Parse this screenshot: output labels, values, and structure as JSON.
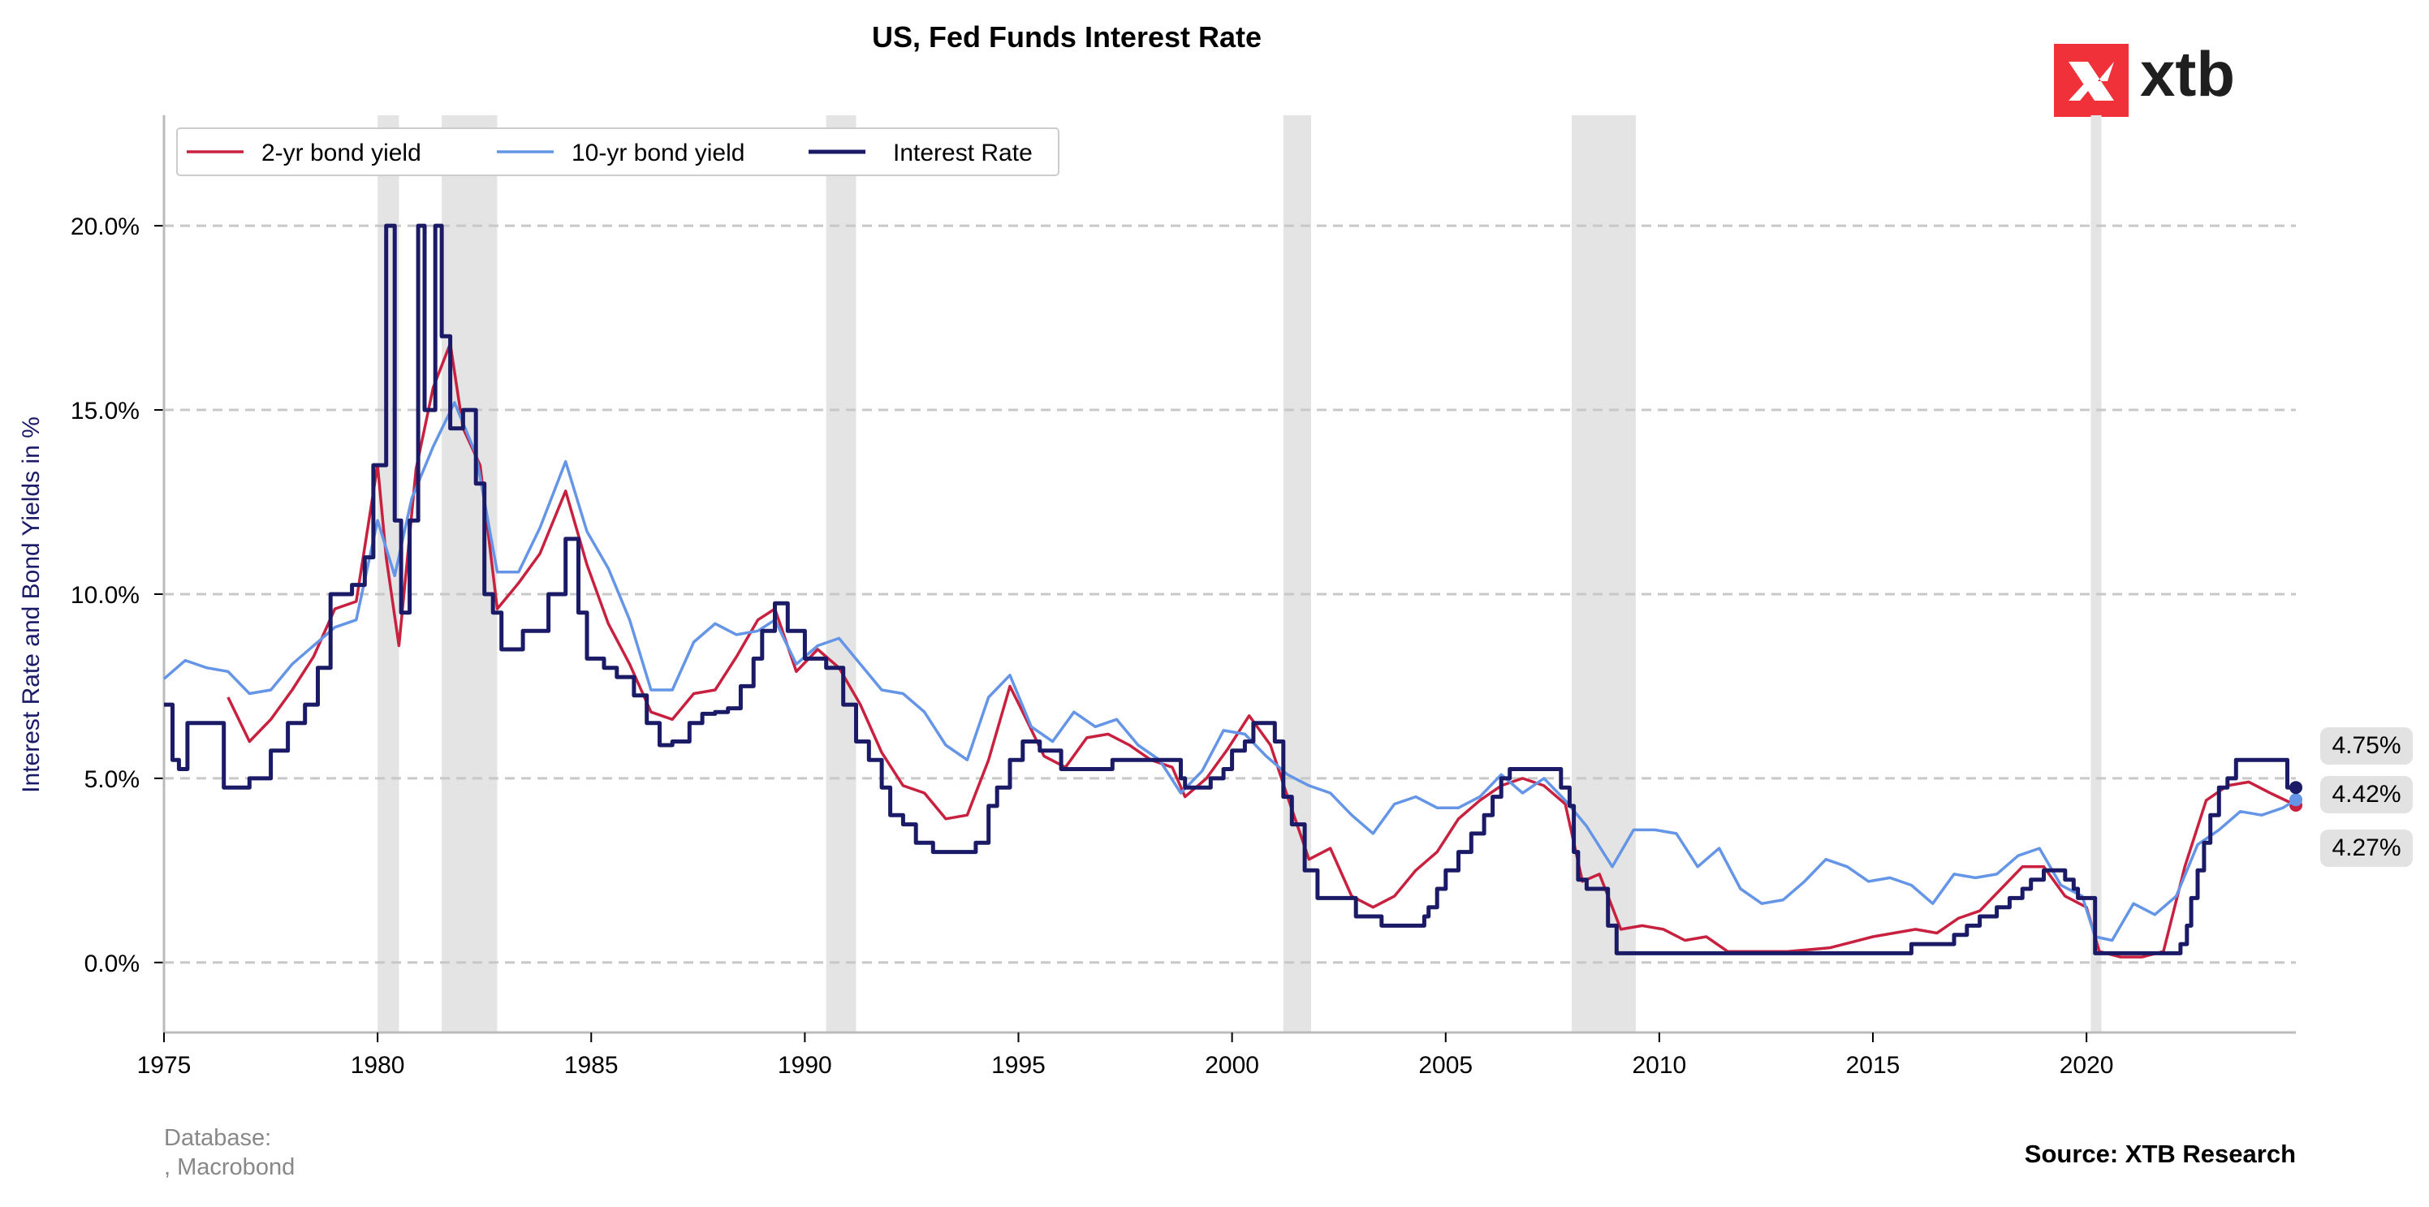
{
  "chart_data": {
    "type": "line",
    "title": "US, Fed Funds Interest Rate",
    "xlabel": "",
    "ylabel": "Interest Rate and Bond Yields in %",
    "xlim": [
      1975,
      2024.9
    ],
    "ylim": [
      -1.9,
      23
    ],
    "x_ticks": [
      1975,
      1980,
      1985,
      1990,
      1995,
      2000,
      2005,
      2010,
      2015,
      2020
    ],
    "x_tick_labels": [
      "1975",
      "1980",
      "1985",
      "1990",
      "1995",
      "2000",
      "2005",
      "2010",
      "2015",
      "2020"
    ],
    "y_ticks": [
      0,
      5,
      10,
      15,
      20
    ],
    "y_tick_labels": [
      "0.0%",
      "5.0%",
      "10.0%",
      "15.0%",
      "20.0%"
    ],
    "grid": "horizontal dashed",
    "legend_position": "top-left",
    "recession_shading": [
      [
        1980.0,
        1980.5
      ],
      [
        1981.5,
        1982.8
      ],
      [
        1990.5,
        1991.2
      ],
      [
        2001.2,
        2001.85
      ],
      [
        2007.95,
        2009.45
      ],
      [
        2020.1,
        2020.35
      ]
    ],
    "series": [
      {
        "name": "2-yr bond yield",
        "color": "#c8203f",
        "x": [
          1976.5,
          1977.0,
          1977.5,
          1978.0,
          1978.5,
          1979.0,
          1979.5,
          1980.0,
          1980.2,
          1980.5,
          1980.9,
          1981.3,
          1981.7,
          1982.0,
          1982.4,
          1982.8,
          1983.3,
          1983.8,
          1984.4,
          1984.9,
          1985.4,
          1985.9,
          1986.4,
          1986.9,
          1987.4,
          1987.9,
          1988.4,
          1988.9,
          1989.3,
          1989.8,
          1990.3,
          1990.8,
          1991.3,
          1991.8,
          1992.3,
          1992.8,
          1993.3,
          1993.8,
          1994.3,
          1994.8,
          1995.1,
          1995.6,
          1996.1,
          1996.6,
          1997.1,
          1997.6,
          1998.1,
          1998.6,
          1998.9,
          1999.4,
          1999.9,
          2000.4,
          2000.9,
          2001.3,
          2001.8,
          2002.3,
          2002.8,
          2003.3,
          2003.8,
          2004.3,
          2004.8,
          2005.3,
          2005.8,
          2006.3,
          2006.8,
          2007.3,
          2007.8,
          2008.2,
          2008.6,
          2009.1,
          2009.6,
          2010.1,
          2010.6,
          2011.1,
          2011.6,
          2012.1,
          2013.0,
          2014.0,
          2015.0,
          2016.0,
          2016.5,
          2017.0,
          2017.5,
          2018.0,
          2018.5,
          2019.0,
          2019.5,
          2020.0,
          2020.3,
          2020.8,
          2021.3,
          2021.8,
          2022.3,
          2022.8,
          2023.3,
          2023.8,
          2024.3,
          2024.9
        ],
        "y": [
          7.2,
          6.0,
          6.6,
          7.4,
          8.3,
          9.6,
          9.8,
          13.5,
          11.0,
          8.6,
          13.4,
          15.6,
          16.8,
          14.5,
          13.5,
          9.6,
          10.3,
          11.1,
          12.8,
          10.8,
          9.2,
          8.1,
          6.8,
          6.6,
          7.3,
          7.4,
          8.3,
          9.3,
          9.6,
          7.9,
          8.5,
          8.0,
          7.0,
          5.7,
          4.8,
          4.6,
          3.9,
          4.0,
          5.5,
          7.5,
          6.8,
          5.6,
          5.3,
          6.1,
          6.2,
          5.9,
          5.5,
          5.3,
          4.5,
          5.0,
          5.8,
          6.7,
          5.9,
          4.5,
          2.8,
          3.1,
          1.8,
          1.5,
          1.8,
          2.5,
          3.0,
          3.9,
          4.4,
          4.8,
          5.0,
          4.8,
          4.3,
          2.2,
          2.4,
          0.9,
          1.0,
          0.9,
          0.6,
          0.7,
          0.3,
          0.3,
          0.3,
          0.4,
          0.7,
          0.9,
          0.8,
          1.2,
          1.4,
          2.0,
          2.6,
          2.6,
          1.8,
          1.5,
          0.3,
          0.15,
          0.15,
          0.3,
          2.6,
          4.4,
          4.8,
          4.9,
          4.6,
          4.27
        ]
      },
      {
        "name": "10-yr bond yield",
        "color": "#6495e6",
        "x": [
          1975.0,
          1975.5,
          1976.0,
          1976.5,
          1977.0,
          1977.5,
          1978.0,
          1978.5,
          1979.0,
          1979.5,
          1980.0,
          1980.4,
          1980.8,
          1981.3,
          1981.8,
          1982.3,
          1982.8,
          1983.3,
          1983.8,
          1984.4,
          1984.9,
          1985.4,
          1985.9,
          1986.4,
          1986.9,
          1987.4,
          1987.9,
          1988.4,
          1988.9,
          1989.3,
          1989.8,
          1990.3,
          1990.8,
          1991.3,
          1991.8,
          1992.3,
          1992.8,
          1993.3,
          1993.8,
          1994.3,
          1994.8,
          1995.3,
          1995.8,
          1996.3,
          1996.8,
          1997.3,
          1997.8,
          1998.3,
          1998.8,
          1999.3,
          1999.8,
          2000.3,
          2000.8,
          2001.3,
          2001.8,
          2002.3,
          2002.8,
          2003.3,
          2003.8,
          2004.3,
          2004.8,
          2005.3,
          2005.8,
          2006.3,
          2006.8,
          2007.3,
          2007.8,
          2008.3,
          2008.9,
          2009.4,
          2009.9,
          2010.4,
          2010.9,
          2011.4,
          2011.9,
          2012.4,
          2012.9,
          2013.4,
          2013.9,
          2014.4,
          2014.9,
          2015.4,
          2015.9,
          2016.4,
          2016.9,
          2017.4,
          2017.9,
          2018.4,
          2018.9,
          2019.4,
          2019.9,
          2020.2,
          2020.6,
          2021.1,
          2021.6,
          2022.1,
          2022.6,
          2023.1,
          2023.6,
          2024.1,
          2024.6,
          2024.9
        ],
        "y": [
          7.7,
          8.2,
          8.0,
          7.9,
          7.3,
          7.4,
          8.1,
          8.6,
          9.1,
          9.3,
          12.0,
          10.5,
          12.6,
          14.0,
          15.2,
          13.8,
          10.6,
          10.6,
          11.8,
          13.6,
          11.7,
          10.7,
          9.3,
          7.4,
          7.4,
          8.7,
          9.2,
          8.9,
          9.0,
          9.3,
          8.1,
          8.6,
          8.8,
          8.1,
          7.4,
          7.3,
          6.8,
          5.9,
          5.5,
          7.2,
          7.8,
          6.4,
          6.0,
          6.8,
          6.4,
          6.6,
          5.9,
          5.5,
          4.6,
          5.2,
          6.3,
          6.2,
          5.6,
          5.1,
          4.8,
          4.6,
          4.0,
          3.5,
          4.3,
          4.5,
          4.2,
          4.2,
          4.5,
          5.1,
          4.6,
          5.0,
          4.4,
          3.7,
          2.6,
          3.6,
          3.6,
          3.5,
          2.6,
          3.1,
          2.0,
          1.6,
          1.7,
          2.2,
          2.8,
          2.6,
          2.2,
          2.3,
          2.1,
          1.6,
          2.4,
          2.3,
          2.4,
          2.9,
          3.1,
          2.1,
          1.8,
          0.7,
          0.6,
          1.6,
          1.3,
          1.8,
          3.2,
          3.6,
          4.1,
          4.0,
          4.2,
          4.42
        ]
      },
      {
        "name": "Interest Rate",
        "color": "#1a1a66",
        "step": true,
        "x": [
          1975.0,
          1975.2,
          1975.35,
          1975.55,
          1975.9,
          1976.4,
          1976.8,
          1977.0,
          1977.5,
          1977.9,
          1978.3,
          1978.6,
          1978.9,
          1979.4,
          1979.7,
          1979.9,
          1980.2,
          1980.4,
          1980.55,
          1980.75,
          1980.95,
          1981.1,
          1981.35,
          1981.5,
          1981.7,
          1982.0,
          1982.3,
          1982.5,
          1982.7,
          1982.9,
          1983.4,
          1984.0,
          1984.4,
          1984.7,
          1984.9,
          1985.3,
          1985.6,
          1986.0,
          1986.3,
          1986.6,
          1986.9,
          1987.3,
          1987.6,
          1987.9,
          1988.2,
          1988.5,
          1988.8,
          1989.0,
          1989.3,
          1989.6,
          1990.0,
          1990.5,
          1990.9,
          1991.2,
          1991.5,
          1991.8,
          1992.0,
          1992.3,
          1992.6,
          1993.0,
          1994.0,
          1994.3,
          1994.5,
          1994.8,
          1995.1,
          1995.5,
          1996.0,
          1997.2,
          1998.8,
          1998.9,
          1999.0,
          1999.5,
          1999.8,
          2000.0,
          2000.3,
          2000.5,
          2001.0,
          2001.2,
          2001.4,
          2001.7,
          2002.0,
          2002.9,
          2003.5,
          2004.5,
          2004.6,
          2004.8,
          2005.0,
          2005.3,
          2005.6,
          2005.9,
          2006.1,
          2006.3,
          2006.5,
          2007.7,
          2007.9,
          2008.0,
          2008.1,
          2008.3,
          2008.8,
          2009.0,
          2015.9,
          2016.9,
          2017.2,
          2017.5,
          2017.9,
          2018.2,
          2018.5,
          2018.7,
          2019.0,
          2019.5,
          2019.7,
          2019.8,
          2020.2,
          2022.2,
          2022.35,
          2022.45,
          2022.6,
          2022.75,
          2022.9,
          2023.1,
          2023.3,
          2023.5,
          2024.7,
          2024.9
        ],
        "y": [
          7.0,
          5.5,
          5.25,
          6.5,
          6.5,
          4.75,
          4.75,
          5.0,
          5.75,
          6.5,
          7.0,
          8.0,
          10.0,
          10.25,
          11.0,
          13.5,
          20.0,
          12.0,
          9.5,
          12.0,
          20.0,
          15.0,
          20.0,
          17.0,
          14.5,
          15.0,
          13.0,
          10.0,
          9.5,
          8.5,
          9.0,
          10.0,
          11.5,
          9.5,
          8.25,
          8.0,
          7.75,
          7.25,
          6.5,
          5.9,
          6.0,
          6.5,
          6.75,
          6.8,
          6.9,
          7.5,
          8.25,
          9.0,
          9.75,
          9.0,
          8.25,
          8.0,
          7.0,
          6.0,
          5.5,
          4.75,
          4.0,
          3.75,
          3.25,
          3.0,
          3.25,
          4.25,
          4.75,
          5.5,
          6.0,
          5.75,
          5.25,
          5.5,
          5.0,
          4.75,
          4.75,
          5.0,
          5.25,
          5.75,
          6.0,
          6.5,
          6.0,
          4.5,
          3.75,
          2.5,
          1.75,
          1.25,
          1.0,
          1.25,
          1.5,
          2.0,
          2.5,
          3.0,
          3.5,
          4.0,
          4.5,
          5.0,
          5.25,
          4.75,
          4.25,
          3.0,
          2.25,
          2.0,
          1.0,
          0.25,
          0.5,
          0.75,
          1.0,
          1.25,
          1.5,
          1.75,
          2.0,
          2.25,
          2.5,
          2.25,
          2.0,
          1.75,
          0.25,
          0.5,
          1.0,
          1.75,
          2.5,
          3.25,
          4.0,
          4.75,
          5.0,
          5.5,
          4.75,
          4.75
        ]
      }
    ],
    "end_value_labels": [
      "4.75%",
      "4.42%",
      "4.27%"
    ]
  },
  "branding": {
    "logo_text": "xtb"
  },
  "footer": {
    "database_line1": "Database:",
    "database_line2": ", Macrobond",
    "source": "Source: XTB Research"
  }
}
